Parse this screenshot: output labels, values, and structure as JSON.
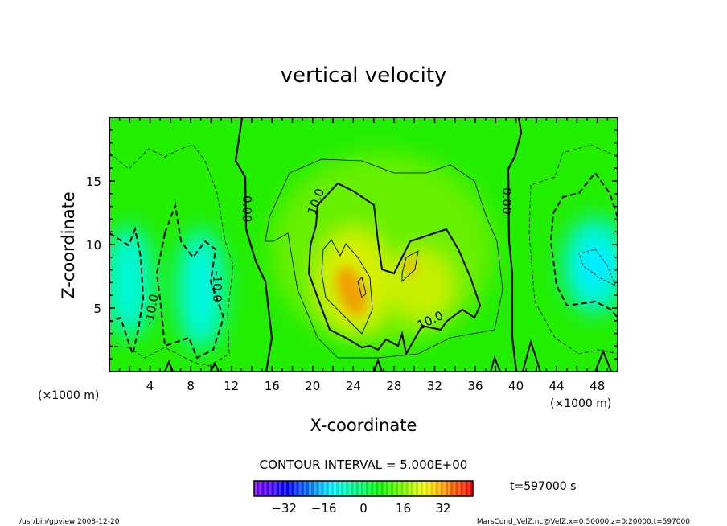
{
  "chart_data": {
    "type": "heatmap",
    "title": "vertical velocity",
    "xlabel": "X-coordinate",
    "ylabel": "Z-coordinate",
    "x_unit": "(×1000 m)",
    "z_unit": "(×1000 m)",
    "xlim": [
      0,
      50
    ],
    "ylim": [
      0,
      20
    ],
    "x_ticks": [
      4,
      8,
      12,
      16,
      20,
      24,
      28,
      32,
      36,
      40,
      44,
      48
    ],
    "y_ticks": [
      5,
      10,
      15
    ],
    "contour_interval_text": "CONTOUR INTERVAL = 5.000E+00",
    "contour_labels": [
      "0.00",
      "0.00",
      "10.0",
      "10.0",
      "-10.0",
      "-10.0"
    ],
    "features": [
      {
        "kind": "max",
        "x": 24,
        "z": 6.5,
        "value": 25
      },
      {
        "kind": "max",
        "x": 29.5,
        "z": 8.5,
        "value": 18
      },
      {
        "kind": "min",
        "x": 1.5,
        "z": 6.5,
        "value": -15
      },
      {
        "kind": "min",
        "x": 9,
        "z": 6,
        "value": -15
      },
      {
        "kind": "min",
        "x": 47.5,
        "z": 8.5,
        "value": -18
      }
    ],
    "colorbar": {
      "ticks": [
        -32,
        -16,
        0,
        16,
        32
      ],
      "range": [
        -44,
        44
      ]
    },
    "time_label": "t=597000 s"
  },
  "footer": {
    "left": "/usr/bin/gpview  2008-12-20",
    "right": "MarsCond_VelZ.nc@VelZ,x=0:50000,z=0:20000,t=597000"
  },
  "colors": {
    "background": "#22ee00",
    "positive": "#ffcc00",
    "negative": "#00ffee"
  }
}
